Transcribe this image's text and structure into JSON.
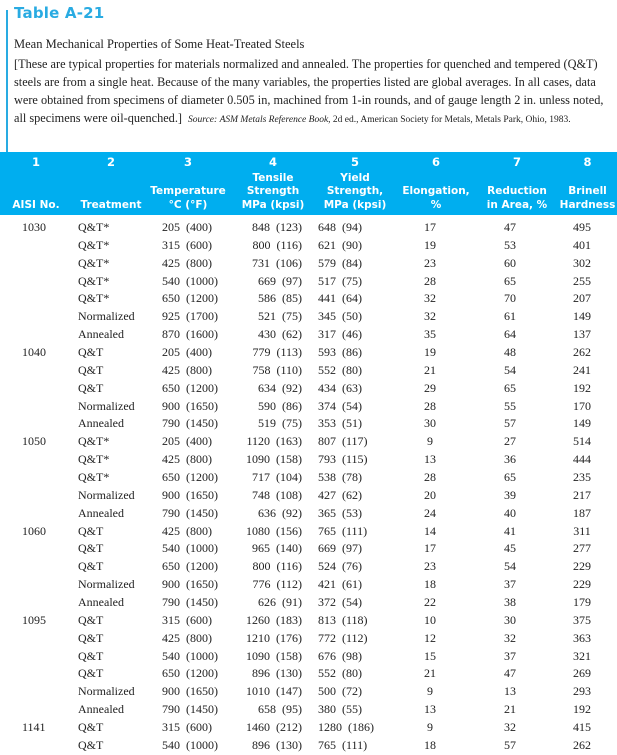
{
  "table_label": "Table A-21",
  "subtitle": "Mean Mechanical Properties of Some Heat-Treated Steels",
  "description": "[These are typical properties for materials normalized and annealed. The properties for quenched and tempered (Q&T) steels are from a single heat. Because of the many variables, the properties listed are global averages. In all cases, data were obtained from specimens of diameter 0.505 in, machined from 1-in rounds, and of gauge length 2 in. unless noted, all specimens were oil-quenched.]",
  "source_label": "Source:",
  "source_title": "ASM Metals Reference Book,",
  "source_rest": "2d ed., American Society for Metals, Metals Park, Ohio, 1983.",
  "columns": [
    {
      "num": "1",
      "label": "AISI No."
    },
    {
      "num": "2",
      "label": "Treatment"
    },
    {
      "num": "3",
      "label": "Temperature\n°C (°F)"
    },
    {
      "num": "4",
      "label": "Tensile\nStrength\nMPa (kpsi)"
    },
    {
      "num": "5",
      "label": "Yield\nStrength,\nMPa (kpsi)"
    },
    {
      "num": "6",
      "label": "Elongation,\n%"
    },
    {
      "num": "7",
      "label": "Reduction\nin Area, %"
    },
    {
      "num": "8",
      "label": "Brinell\nHardness"
    }
  ],
  "rows": [
    [
      "1030",
      "Q&T*",
      "205  (400)",
      "848  (123)",
      "648  (94)",
      "17",
      "47",
      "495"
    ],
    [
      "",
      "Q&T*",
      "315  (600)",
      "800  (116)",
      "621  (90)",
      "19",
      "53",
      "401"
    ],
    [
      "",
      "Q&T*",
      "425  (800)",
      "731  (106)",
      "579  (84)",
      "23",
      "60",
      "302"
    ],
    [
      "",
      "Q&T*",
      "540  (1000)",
      "669  (97)",
      "517  (75)",
      "28",
      "65",
      "255"
    ],
    [
      "",
      "Q&T*",
      "650  (1200)",
      "586  (85)",
      "441  (64)",
      "32",
      "70",
      "207"
    ],
    [
      "",
      "Normalized",
      "925  (1700)",
      "521  (75)",
      "345  (50)",
      "32",
      "61",
      "149"
    ],
    [
      "",
      "Annealed",
      "870  (1600)",
      "430  (62)",
      "317  (46)",
      "35",
      "64",
      "137"
    ],
    [
      "1040",
      "Q&T",
      "205  (400)",
      "779  (113)",
      "593  (86)",
      "19",
      "48",
      "262"
    ],
    [
      "",
      "Q&T",
      "425  (800)",
      "758  (110)",
      "552  (80)",
      "21",
      "54",
      "241"
    ],
    [
      "",
      "Q&T",
      "650  (1200)",
      "634  (92)",
      "434  (63)",
      "29",
      "65",
      "192"
    ],
    [
      "",
      "Normalized",
      "900  (1650)",
      "590  (86)",
      "374  (54)",
      "28",
      "55",
      "170"
    ],
    [
      "",
      "Annealed",
      "790  (1450)",
      "519  (75)",
      "353  (51)",
      "30",
      "57",
      "149"
    ],
    [
      "1050",
      "Q&T*",
      "205  (400)",
      "1120  (163)",
      "807  (117)",
      "9",
      "27",
      "514"
    ],
    [
      "",
      "Q&T*",
      "425  (800)",
      "1090  (158)",
      "793  (115)",
      "13",
      "36",
      "444"
    ],
    [
      "",
      "Q&T*",
      "650  (1200)",
      "717  (104)",
      "538  (78)",
      "28",
      "65",
      "235"
    ],
    [
      "",
      "Normalized",
      "900  (1650)",
      "748  (108)",
      "427  (62)",
      "20",
      "39",
      "217"
    ],
    [
      "",
      "Annealed",
      "790  (1450)",
      "636  (92)",
      "365  (53)",
      "24",
      "40",
      "187"
    ],
    [
      "1060",
      "Q&T",
      "425  (800)",
      "1080  (156)",
      "765  (111)",
      "14",
      "41",
      "311"
    ],
    [
      "",
      "Q&T",
      "540  (1000)",
      "965  (140)",
      "669  (97)",
      "17",
      "45",
      "277"
    ],
    [
      "",
      "Q&T",
      "650  (1200)",
      "800  (116)",
      "524  (76)",
      "23",
      "54",
      "229"
    ],
    [
      "",
      "Normalized",
      "900  (1650)",
      "776  (112)",
      "421  (61)",
      "18",
      "37",
      "229"
    ],
    [
      "",
      "Annealed",
      "790  (1450)",
      "626  (91)",
      "372  (54)",
      "22",
      "38",
      "179"
    ],
    [
      "1095",
      "Q&T",
      "315  (600)",
      "1260  (183)",
      "813  (118)",
      "10",
      "30",
      "375"
    ],
    [
      "",
      "Q&T",
      "425  (800)",
      "1210  (176)",
      "772  (112)",
      "12",
      "32",
      "363"
    ],
    [
      "",
      "Q&T",
      "540  (1000)",
      "1090  (158)",
      "676  (98)",
      "15",
      "37",
      "321"
    ],
    [
      "",
      "Q&T",
      "650  (1200)",
      "896  (130)",
      "552  (80)",
      "21",
      "47",
      "269"
    ],
    [
      "",
      "Normalized",
      "900  (1650)",
      "1010  (147)",
      "500  (72)",
      "9",
      "13",
      "293"
    ],
    [
      "",
      "Annealed",
      "790  (1450)",
      "658  (95)",
      "380  (55)",
      "13",
      "21",
      "192"
    ],
    [
      "1141",
      "Q&T",
      "315  (600)",
      "1460  (212)",
      "1280  (186)",
      "9",
      "32",
      "415"
    ],
    [
      "",
      "Q&T",
      "540  (1000)",
      "896  (130)",
      "765  (111)",
      "18",
      "57",
      "262"
    ]
  ],
  "colors": {
    "accent": "#00aeef",
    "title": "#29abe2"
  }
}
